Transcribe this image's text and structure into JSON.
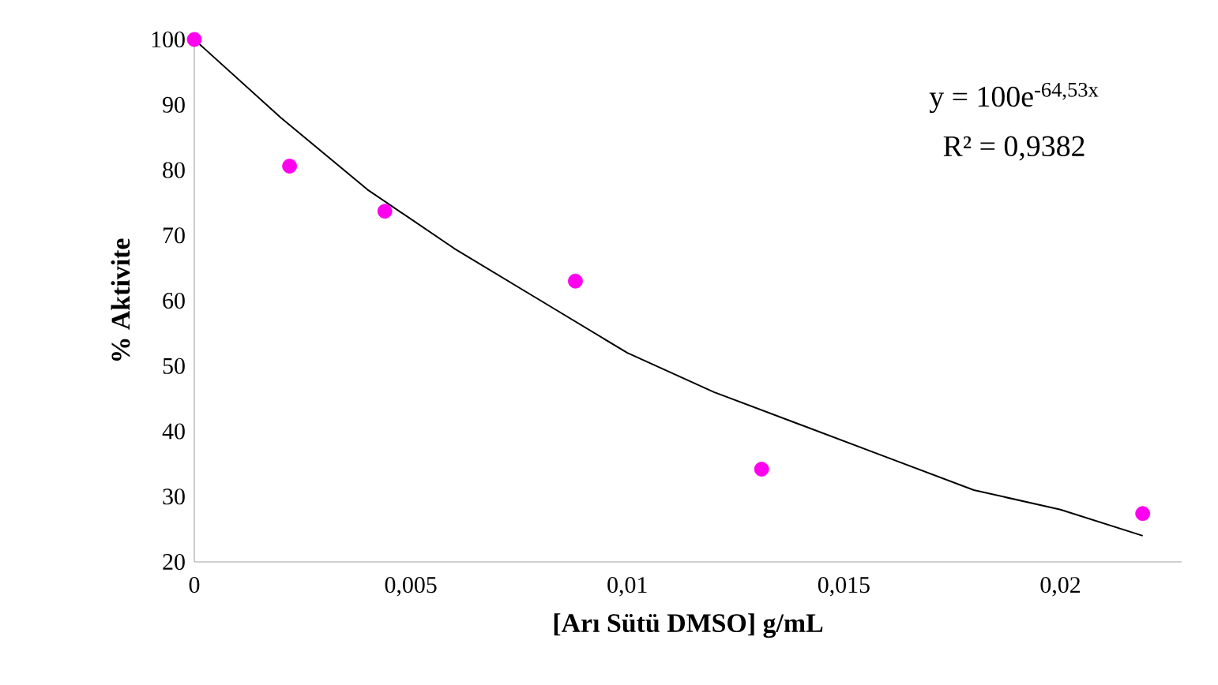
{
  "chart_data": {
    "type": "scatter",
    "xlabel": "[Arı Sütü DMSO]  g/mL",
    "ylabel": "% Aktivite",
    "annotations": [
      "y = 100e$^{-64,53x}$",
      "R² = 0,9382"
    ],
    "xlim": [
      0,
      0.0228
    ],
    "ylim": [
      20,
      100
    ],
    "xticks": [
      0,
      {
        "value": 0.005,
        "label": "0,005"
      },
      {
        "value": 0.01,
        "label": "0,01"
      },
      {
        "value": 0.015,
        "label": "0,015"
      },
      {
        "value": 0.02,
        "label": "0,02"
      }
    ],
    "yticks": [
      20,
      30,
      40,
      50,
      60,
      70,
      80,
      90,
      100
    ],
    "grid": false,
    "series": [
      {
        "marker": "circle",
        "color": "#ff00ee",
        "x": [
          0,
          0.0022,
          0.0044,
          0.0088,
          0.0131,
          0.0219
        ],
        "values": [
          100,
          80.6,
          73.7,
          63,
          34.2,
          27.4
        ]
      },
      {
        "type": "line",
        "marker": "none",
        "color": "#000000",
        "line_style": "solid",
        "x": [
          0,
          0.002,
          0.004,
          0.006,
          0.008,
          0.01,
          0.012,
          0.014,
          0.016,
          0.018,
          0.02,
          0.0219
        ],
        "values": [
          100,
          88,
          77,
          68,
          60,
          52,
          46,
          41,
          36,
          31,
          28,
          24
        ]
      }
    ]
  }
}
